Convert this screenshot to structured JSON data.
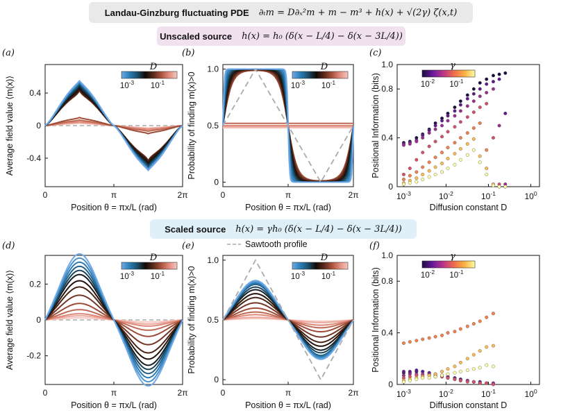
{
  "banners": {
    "top_title": "Landau-Ginzburg fluctuating PDE",
    "top_eq": "∂ₜm = D∂ₓ²m + m − m³ + h(x) + √(2γ) ζ(x,t)",
    "unscaled_title": "Unscaled source",
    "unscaled_eq": "h(x) = h₀ (δ(x − L/4) − δ(x − 3L/4))",
    "scaled_title": "Scaled source",
    "scaled_eq": "h(x) = γh₀ (δ(x − L/4) − δ(x − 3L/4))"
  },
  "colors": {
    "ref_dashed": "#aaaaaa",
    "cmap_D": [
      "#6fa8e6",
      "#2a7fb8",
      "#1b4f6b",
      "#120a06",
      "#5a2a1a",
      "#a9523c",
      "#e28d7e",
      "#f5c8c0"
    ],
    "cmap_gamma": [
      "#1b0c41",
      "#6a1a9a",
      "#b83589",
      "#ef6a4d",
      "#fbb040",
      "#fcfda4"
    ]
  },
  "chart_data": [
    {
      "panel": "(a)",
      "type": "line",
      "ylabel": "Average field value ⟨m(x)⟩",
      "xlabel": "Position θ = πx/L (rad)",
      "xticks": [
        "0",
        "π",
        "2π"
      ],
      "yticks": [
        "-0.4",
        "0",
        "0.4"
      ],
      "xlim": [
        0,
        6.283
      ],
      "ylim": [
        -0.75,
        0.75
      ],
      "legend": {
        "title": "D",
        "min_label": "10-3",
        "max_label": "10-1",
        "placement": "top-right"
      },
      "series_family": "unscaled_mean",
      "D_values": [
        0.001,
        0.0016,
        0.0025,
        0.004,
        0.0063,
        0.01,
        0.016,
        0.025,
        0.04,
        0.063,
        0.1,
        0.16,
        0.25,
        0.4
      ],
      "peak_values": [
        0.55,
        0.54,
        0.53,
        0.52,
        0.5,
        0.48,
        0.46,
        0.44,
        0.43,
        0.1,
        0.07,
        0.05,
        0.04,
        0.03
      ]
    },
    {
      "panel": "(b)",
      "type": "line",
      "ylabel": "Probability of finding m(x)>0",
      "xlabel": "Position θ = πx/L (rad)",
      "xticks": [
        "0",
        "π",
        "2π"
      ],
      "yticks": [
        "0",
        "0.5",
        "1.0"
      ],
      "xlim": [
        0,
        6.283
      ],
      "ylim": [
        -0.04,
        1.04
      ],
      "legend": {
        "title": "D",
        "min_label": "10-3",
        "max_label": "10-1",
        "placement": "top-right"
      },
      "series_family": "unscaled_prob",
      "D_values": [
        0.001,
        0.0016,
        0.0025,
        0.004,
        0.0063,
        0.01,
        0.016,
        0.025,
        0.04,
        0.063,
        0.1,
        0.16,
        0.25,
        0.4
      ],
      "transition_width": [
        0.15,
        0.22,
        0.3,
        0.4,
        0.5,
        0.6,
        0.7,
        0.8,
        0.9,
        1.0,
        0,
        0,
        0,
        0
      ],
      "flat_offsets": [
        0,
        0,
        0,
        0,
        0,
        0,
        0,
        0,
        0,
        0,
        0.02,
        0.0,
        -0.01,
        -0.02
      ]
    },
    {
      "panel": "(c)",
      "type": "scatter",
      "ylabel": "Positional Information (bits)",
      "xlabel": "Diffusion constant D",
      "xscale": "log",
      "xlim": [
        0.0007,
        1.6
      ],
      "ylim": [
        0,
        1.0
      ],
      "xticks": [
        "10-3",
        "10-2",
        "10-1",
        "100"
      ],
      "yticks": [
        "0",
        "0.4",
        "0.8"
      ],
      "legend": {
        "title": "γ",
        "min_label": "10-2",
        "max_label": "10-1",
        "placement": "top-left"
      },
      "series_family": "unscaled_pi",
      "gamma_values": [
        0.01,
        0.016,
        0.025,
        0.04,
        0.063,
        0.1,
        0.16
      ],
      "D_values": [
        0.001,
        0.0014,
        0.002,
        0.0028,
        0.004,
        0.0056,
        0.008,
        0.011,
        0.016,
        0.022,
        0.032,
        0.045,
        0.063,
        0.09,
        0.13,
        0.18,
        0.25
      ],
      "pi_values": [
        [
          0.36,
          0.37,
          0.4,
          0.43,
          0.47,
          0.52,
          0.56,
          0.6,
          0.65,
          0.7,
          0.75,
          0.8,
          0.85,
          0.88,
          0.91,
          0.92,
          0.93
        ],
        [
          0.35,
          0.36,
          0.38,
          0.42,
          0.46,
          0.5,
          0.54,
          0.58,
          0.62,
          0.67,
          0.72,
          0.76,
          0.8,
          0.84,
          0.86,
          0.88,
          0.6
        ],
        [
          0.34,
          0.35,
          0.37,
          0.4,
          0.44,
          0.47,
          0.5,
          0.54,
          0.58,
          0.62,
          0.66,
          0.7,
          0.74,
          0.77,
          0.8,
          0.5,
          0.02
        ],
        [
          0.1,
          0.15,
          0.22,
          0.28,
          0.33,
          0.37,
          0.41,
          0.45,
          0.49,
          0.53,
          0.57,
          0.61,
          0.65,
          0.68,
          0.4,
          0.02,
          0.0
        ],
        [
          0.06,
          0.09,
          0.12,
          0.16,
          0.2,
          0.24,
          0.28,
          0.32,
          0.36,
          0.4,
          0.44,
          0.48,
          0.52,
          0.3,
          0.02,
          0.0,
          0.0
        ],
        [
          0.03,
          0.05,
          0.07,
          0.1,
          0.13,
          0.16,
          0.19,
          0.23,
          0.27,
          0.31,
          0.35,
          0.39,
          0.25,
          0.15,
          0.02,
          0.0,
          0.0
        ],
        [
          0.02,
          0.03,
          0.04,
          0.06,
          0.08,
          0.1,
          0.12,
          0.15,
          0.18,
          0.22,
          0.26,
          0.3,
          0.2,
          0.1,
          0.01,
          0.0,
          0.0
        ]
      ]
    },
    {
      "panel": "(d)",
      "type": "line",
      "ylabel": "Average field value ⟨m(x)⟩",
      "xlabel": "Position θ = πx/L (rad)",
      "xticks": [
        "0",
        "π",
        "2π"
      ],
      "yticks": [
        "-0.2",
        "0",
        "0.2"
      ],
      "xlim": [
        0,
        6.283
      ],
      "ylim": [
        -0.36,
        0.36
      ],
      "legend": {
        "title": "D",
        "min_label": "10-3",
        "max_label": "10-1",
        "placement": "top-right"
      },
      "series_family": "scaled_mean",
      "D_values": [
        0.001,
        0.0016,
        0.0025,
        0.004,
        0.0063,
        0.01,
        0.016,
        0.025,
        0.04,
        0.063,
        0.1,
        0.16,
        0.25,
        0.4
      ],
      "peak_values": [
        0.32,
        0.3,
        0.28,
        0.26,
        0.24,
        0.22,
        0.19,
        0.16,
        0.12,
        0.08,
        0.05,
        0.03,
        0.02,
        0.01
      ]
    },
    {
      "panel": "(e)",
      "type": "line",
      "ylabel": "Probability of finding m(x)>0",
      "xlabel": "Position θ = πx/L (rad)",
      "xticks": [
        "0",
        "π",
        "2π"
      ],
      "yticks": [
        "0",
        "0.5",
        "1.0"
      ],
      "xlim": [
        0,
        6.283
      ],
      "ylim": [
        -0.04,
        1.04
      ],
      "legend": {
        "title": "D",
        "min_label": "10-3",
        "max_label": "10-1",
        "placement": "top-right"
      },
      "annotation": "Sawtooth profile",
      "series_family": "scaled_prob",
      "D_values": [
        0.001,
        0.0016,
        0.0025,
        0.004,
        0.0063,
        0.01,
        0.016,
        0.025,
        0.04,
        0.063,
        0.1,
        0.16,
        0.25,
        0.4
      ],
      "amplitudes": [
        0.3,
        0.29,
        0.28,
        0.27,
        0.25,
        0.23,
        0.2,
        0.17,
        0.13,
        0.09,
        0.06,
        0.04,
        0.02,
        0.01
      ]
    },
    {
      "panel": "(f)",
      "type": "scatter",
      "ylabel": "Positional Information (bits)",
      "xlabel": "Diffusion constant D",
      "xscale": "log",
      "xlim": [
        0.0007,
        1.6
      ],
      "ylim": [
        0,
        1.0
      ],
      "xticks": [
        "10-3",
        "10-2",
        "10-1",
        "100"
      ],
      "yticks": [
        "0",
        "0.4",
        "0.8"
      ],
      "legend": {
        "title": "γ",
        "min_label": "10-2",
        "max_label": "10-1",
        "placement": "top-left"
      },
      "series_family": "scaled_pi",
      "gamma_values": [
        0.01,
        0.016,
        0.025,
        0.04,
        0.063,
        0.1,
        0.16
      ],
      "D_values": [
        0.001,
        0.0014,
        0.002,
        0.0028,
        0.004,
        0.0056,
        0.008,
        0.011,
        0.016,
        0.022,
        0.032,
        0.045,
        0.063,
        0.09,
        0.13
      ],
      "pi_values": [
        [
          0.09,
          0.09,
          0.1,
          0.1,
          0.09,
          0.08,
          0.07,
          0.06,
          0.05,
          0.04,
          0.03,
          0.02,
          0.02,
          0.01,
          0.01
        ],
        [
          0.1,
          0.1,
          0.11,
          0.1,
          0.09,
          0.08,
          0.07,
          0.06,
          0.05,
          0.04,
          0.03,
          0.02,
          0.02,
          0.01,
          0.01
        ],
        [
          0.07,
          0.08,
          0.08,
          0.08,
          0.08,
          0.07,
          0.06,
          0.05,
          0.04,
          0.03,
          0.03,
          0.02,
          0.01,
          0.01,
          0.01
        ],
        [
          0.05,
          0.06,
          0.07,
          0.07,
          0.07,
          0.06,
          0.06,
          0.05,
          0.04,
          0.03,
          0.02,
          0.02,
          0.01,
          0.01,
          0.0
        ],
        [
          0.32,
          0.33,
          0.34,
          0.35,
          0.36,
          0.37,
          0.38,
          0.4,
          0.41,
          0.43,
          0.45,
          0.47,
          0.49,
          0.52,
          0.55
        ],
        [
          0.03,
          0.04,
          0.05,
          0.06,
          0.07,
          0.08,
          0.1,
          0.12,
          0.14,
          0.17,
          0.2,
          0.23,
          0.26,
          0.29,
          0.3
        ],
        [
          0.02,
          0.03,
          0.04,
          0.05,
          0.05,
          0.06,
          0.07,
          0.08,
          0.09,
          0.1,
          0.11,
          0.12,
          0.13,
          0.15,
          0.14
        ]
      ]
    }
  ]
}
